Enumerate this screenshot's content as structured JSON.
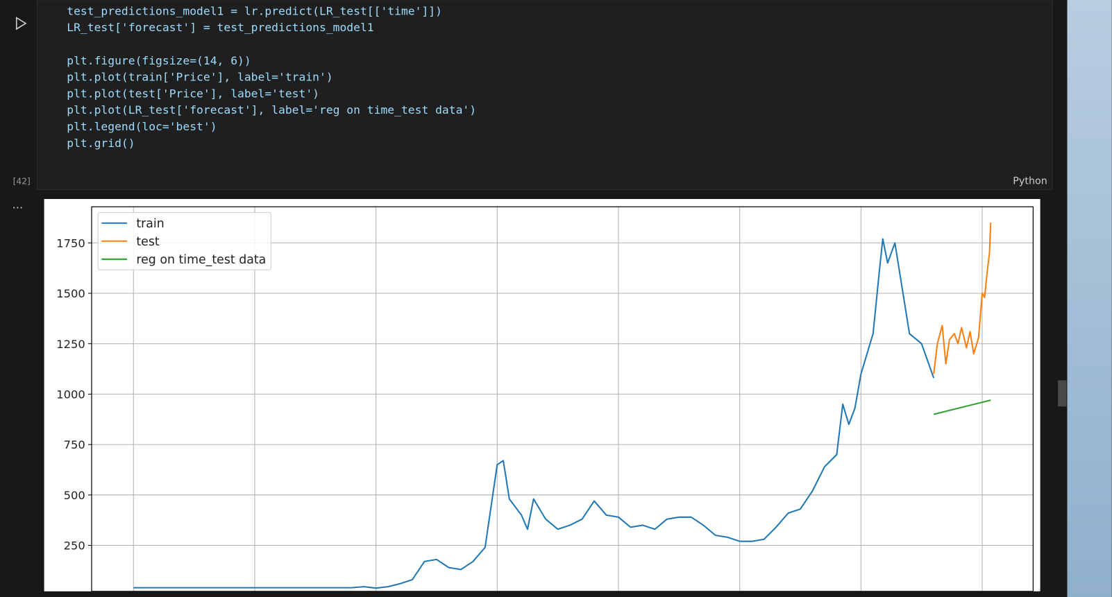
{
  "code": {
    "lines": [
      "test_predictions_model1 = lr.predict(LR_test[['time']])",
      "LR_test['forecast'] = test_predictions_model1",
      "plt.figure(figsize=(14, 6))",
      "plt.plot(train['Price'], label='train')",
      "plt.plot(test['Price'], label='test')",
      "plt.plot(LR_test['forecast'], label='reg on time_test data')",
      "plt.legend(loc='best')",
      "plt.grid()"
    ]
  },
  "cell": {
    "execution_count": "[42]",
    "language": "Python"
  },
  "output": {
    "marker": "..."
  },
  "chart_data": {
    "type": "line",
    "grid": true,
    "legend": "upper left",
    "xlim": [
      -34.5,
      742
    ],
    "xticks": [
      0,
      100,
      200,
      300,
      400,
      500,
      600,
      700
    ],
    "ylim": [
      22,
      1929
    ],
    "yticks": [
      250,
      500,
      750,
      1000,
      1250,
      1500,
      1750
    ],
    "series": [
      {
        "name": "train",
        "color": "#1f77b4",
        "x": [
          0,
          30,
          60,
          90,
          120,
          150,
          180,
          190,
          200,
          210,
          220,
          230,
          240,
          250,
          260,
          270,
          280,
          290,
          300,
          305,
          310,
          320,
          325,
          330,
          340,
          350,
          360,
          370,
          380,
          390,
          400,
          410,
          420,
          430,
          440,
          450,
          460,
          470,
          480,
          490,
          500,
          510,
          520,
          530,
          540,
          550,
          560,
          570,
          580,
          585,
          590,
          595,
          600,
          610,
          615,
          618,
          622,
          625,
          628,
          632,
          640,
          650,
          660
        ],
        "values": [
          40,
          40,
          40,
          40,
          40,
          40,
          40,
          45,
          38,
          45,
          60,
          80,
          170,
          180,
          140,
          130,
          170,
          240,
          650,
          670,
          480,
          400,
          330,
          480,
          380,
          330,
          350,
          380,
          470,
          400,
          390,
          340,
          350,
          330,
          380,
          390,
          390,
          350,
          300,
          290,
          270,
          270,
          280,
          340,
          410,
          430,
          520,
          640,
          700,
          950,
          850,
          930,
          1100,
          1300,
          1600,
          1770,
          1650,
          1700,
          1750,
          1600,
          1300,
          1250,
          1080
        ]
      },
      {
        "name": "test",
        "color": "#ff7f0e",
        "x": [
          660,
          663,
          667,
          670,
          673,
          677,
          680,
          683,
          687,
          690,
          693,
          697,
          700,
          702,
          704,
          706,
          707
        ],
        "values": [
          1100,
          1250,
          1340,
          1150,
          1270,
          1300,
          1250,
          1330,
          1230,
          1310,
          1200,
          1280,
          1500,
          1480,
          1600,
          1700,
          1850
        ]
      },
      {
        "name": "reg on time_test data",
        "color": "#2ca02c",
        "x": [
          660,
          707
        ],
        "values": [
          900,
          970
        ]
      }
    ]
  }
}
